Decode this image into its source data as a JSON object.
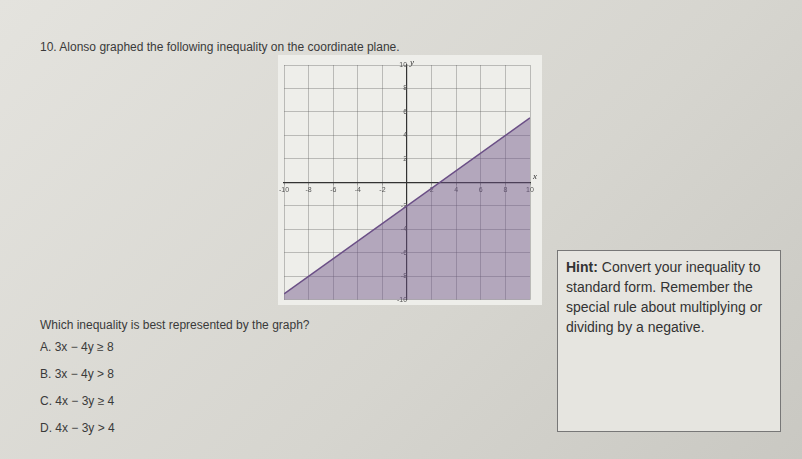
{
  "question": {
    "title": "10. Alonso graphed the following inequality on the coordinate plane.",
    "prompt": "Which inequality is best represented by the graph?",
    "choices": [
      "A. 3x − 4y ≥ 8",
      "B. 3x − 4y > 8",
      "C. 4x − 3y ≥ 4",
      "D. 4x − 3y > 4"
    ]
  },
  "hint": {
    "heading": "Hint:",
    "text": "Convert your inequality to standard form. Remember the special rule about multiplying or dividing by a negative."
  },
  "chart_data": {
    "type": "area",
    "xlabel": "x",
    "ylabel": "y",
    "x": [
      -10,
      10
    ],
    "values": [
      -9.5,
      5.5
    ],
    "color": "#6b4f86",
    "line_style": "solid",
    "xlim": [
      -10,
      10
    ],
    "ylim": [
      -10,
      10
    ],
    "xticks": [
      -10,
      -8,
      -6,
      -4,
      -2,
      2,
      4,
      6,
      8,
      10
    ],
    "yticks": [
      -10,
      -8,
      -6,
      -4,
      -2,
      2,
      4,
      6,
      8,
      10
    ],
    "grid": true
  }
}
